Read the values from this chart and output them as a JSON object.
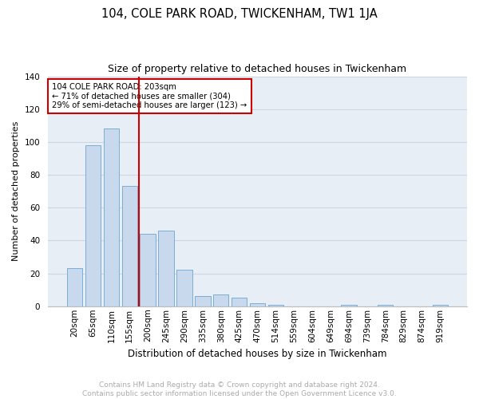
{
  "title": "104, COLE PARK ROAD, TWICKENHAM, TW1 1JA",
  "subtitle": "Size of property relative to detached houses in Twickenham",
  "xlabel": "Distribution of detached houses by size in Twickenham",
  "ylabel": "Number of detached properties",
  "categories": [
    "20sqm",
    "65sqm",
    "110sqm",
    "155sqm",
    "200sqm",
    "245sqm",
    "290sqm",
    "335sqm",
    "380sqm",
    "425sqm",
    "470sqm",
    "514sqm",
    "559sqm",
    "604sqm",
    "649sqm",
    "694sqm",
    "739sqm",
    "784sqm",
    "829sqm",
    "874sqm",
    "919sqm"
  ],
  "values": [
    23,
    98,
    108,
    73,
    44,
    46,
    22,
    6,
    7,
    5,
    2,
    1,
    0,
    0,
    0,
    1,
    0,
    1,
    0,
    0,
    1
  ],
  "bar_color": "#c8d9ee",
  "bar_edge_color": "#7badd4",
  "grid_color": "#ccd5e3",
  "background_color": "#e8eef6",
  "vline_x_index": 4,
  "vline_color": "#cc0000",
  "annotation_text": "104 COLE PARK ROAD: 203sqm\n← 71% of detached houses are smaller (304)\n29% of semi-detached houses are larger (123) →",
  "annotation_box_color": "#cc0000",
  "ylim": [
    0,
    140
  ],
  "yticks": [
    0,
    20,
    40,
    60,
    80,
    100,
    120,
    140
  ],
  "footnote": "Contains HM Land Registry data © Crown copyright and database right 2024.\nContains public sector information licensed under the Open Government Licence v3.0.",
  "title_fontsize": 10.5,
  "subtitle_fontsize": 9,
  "ylabel_fontsize": 8,
  "xlabel_fontsize": 8.5,
  "footnote_fontsize": 6.5,
  "footnote_color": "#aaaaaa",
  "tick_fontsize": 7.5
}
